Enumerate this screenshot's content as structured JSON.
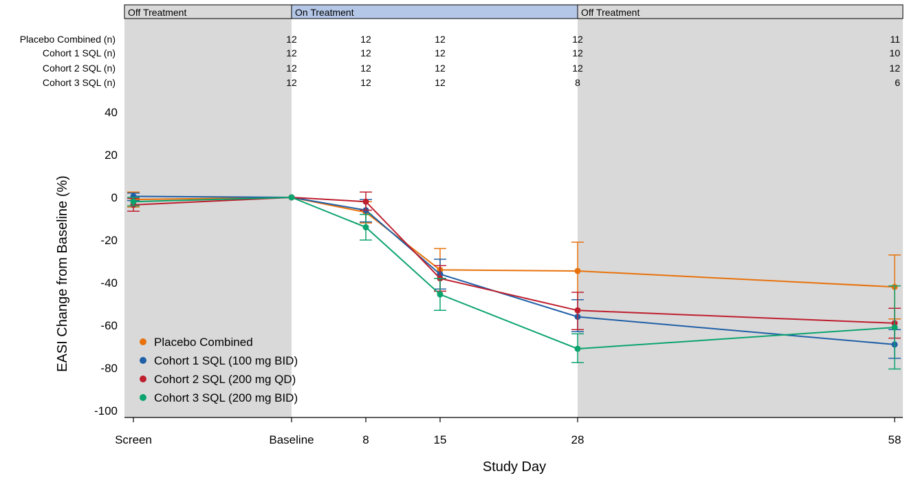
{
  "chart_data": {
    "type": "line",
    "title": "",
    "xlabel": "Study Day",
    "ylabel": "EASI Change from Baseline (%)",
    "ylim": [
      -100,
      40
    ],
    "yticks": [
      40,
      20,
      0,
      -20,
      -40,
      -60,
      -80,
      -100
    ],
    "categories": [
      "Screen",
      "Baseline",
      "8",
      "15",
      "28",
      "58"
    ],
    "x_days": [
      -20,
      0,
      8,
      15,
      28,
      58
    ],
    "phases": [
      {
        "label": "Off Treatment",
        "start": "Screen",
        "end": "Baseline",
        "shaded": true
      },
      {
        "label": "On Treatment",
        "start": "Baseline",
        "end": "28",
        "shaded": false
      },
      {
        "label": "Off Treatment",
        "start": "28",
        "end": "58",
        "shaded": true
      }
    ],
    "n_table": [
      {
        "label": "Placebo Combined (n)",
        "values": [
          "12",
          "12",
          "12",
          "12",
          "11"
        ]
      },
      {
        "label": "Cohort 1 SQL (n)",
        "values": [
          "12",
          "12",
          "12",
          "12",
          "10"
        ]
      },
      {
        "label": "Cohort 2 SQL (n)",
        "values": [
          "12",
          "12",
          "12",
          "12",
          "12"
        ]
      },
      {
        "label": "Cohort 3 SQL (n)",
        "values": [
          "12",
          "12",
          "12",
          "8",
          "6"
        ]
      }
    ],
    "legend_position": "bottom-left",
    "series": [
      {
        "name": "Placebo Combined",
        "color": "#E8710A",
        "values": [
          -1,
          0,
          -7,
          -34,
          -34.5,
          -42
        ],
        "err_low": [
          -4.5,
          0,
          -12,
          -44,
          -48,
          -57
        ],
        "err_high": [
          2.5,
          0,
          -2,
          -24,
          -21,
          -27
        ]
      },
      {
        "name": "Cohort 1 SQL (100 mg BID)",
        "color": "#1F5FA6",
        "values": [
          0.5,
          0,
          -6,
          -36,
          -56,
          -69
        ],
        "err_low": [
          -1.5,
          0,
          -11.5,
          -43,
          -63,
          -75.5
        ],
        "err_high": [
          2,
          0,
          -1,
          -29,
          -48,
          -62
        ]
      },
      {
        "name": "Cohort 2 SQL (200 mg QD)",
        "color": "#BE1E2D",
        "values": [
          -3.5,
          0,
          -2,
          -38,
          -53,
          -59
        ],
        "err_low": [
          -6.5,
          0,
          -6,
          -44,
          -62,
          -66
        ],
        "err_high": [
          -0.5,
          0,
          2.5,
          -32,
          -44.5,
          -52
        ]
      },
      {
        "name": "Cohort 3 SQL (200 mg BID)",
        "color": "#0BA36E",
        "values": [
          -2,
          0,
          -14,
          -45.5,
          -71,
          -61
        ],
        "err_low": [
          -4,
          0,
          -20,
          -53,
          -77.5,
          -80.5
        ],
        "err_high": [
          0,
          0,
          -8,
          -38,
          -64,
          -41.5
        ]
      }
    ]
  }
}
